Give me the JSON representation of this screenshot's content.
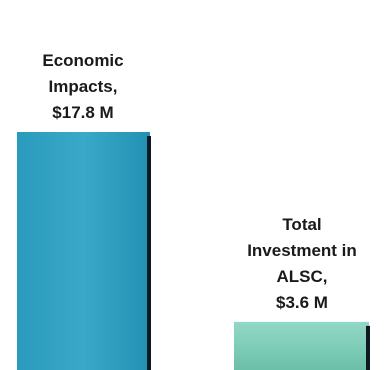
{
  "chart_data": {
    "type": "bar",
    "categories": [
      "Economic Impacts",
      "Total Investment in ALSC"
    ],
    "values": [
      17.8,
      3.6
    ],
    "data_labels": [
      [
        "Economic",
        "Impacts,",
        "$17.8 M"
      ],
      [
        "Total",
        "Investment in",
        "ALSC,",
        "$3.6 M"
      ]
    ],
    "unit": "$ M",
    "ylim": [
      0,
      17.8
    ],
    "grid": false,
    "legend": "none",
    "colors": [
      "#2a9bbd",
      "#7fcdb8"
    ]
  }
}
